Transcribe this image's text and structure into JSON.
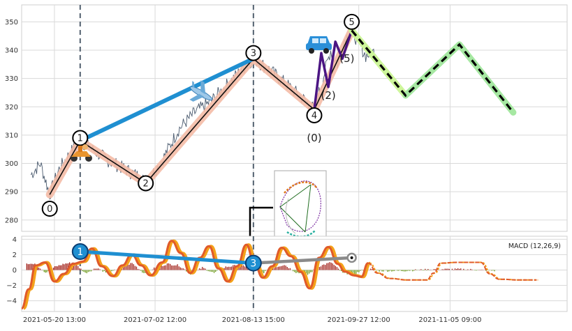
{
  "colors": {
    "grid": "#d9d9d9",
    "price_line": "#4a5a6e",
    "vline": "#52616f",
    "wave_fill": "#f4bba6",
    "wave_line": "#111111",
    "swing_line": "#1f8fd1",
    "sub_wave": "#4b1583",
    "projection_dash": "#000000",
    "projection_glow_a": "#cdf59a",
    "projection_glow_b": "#a6e8a2",
    "macd_line": "#e05a2a",
    "macd_signal": "#f4a21a",
    "hist_pos": "#a3241d",
    "hist_neg": "#6b9a1a",
    "connector_gray": "#8a8a8a"
  },
  "icons": [
    "scooter-icon",
    "airplane-icon",
    "car-icon",
    "chart-thumbnail-icon"
  ],
  "chart_data": [
    {
      "type": "line",
      "panel": "price",
      "ylim": [
        276,
        356
      ],
      "yticks": [
        "280",
        "290",
        "300",
        "310",
        "320",
        "330",
        "340",
        "350"
      ],
      "grid": true,
      "x_range": [
        "2021-05-06",
        "2021-12-25"
      ],
      "marker_vlines": [
        "2021-05-31",
        "2021-08-13"
      ],
      "price_series": [
        [
          "2021-05-10",
          296
        ],
        [
          "2021-05-14",
          300
        ],
        [
          "2021-05-18",
          289
        ],
        [
          "2021-05-22",
          298
        ],
        [
          "2021-05-27",
          304
        ],
        [
          "2021-05-31",
          308
        ],
        [
          "2021-06-05",
          305
        ],
        [
          "2021-06-12",
          301
        ],
        [
          "2021-06-19",
          298
        ],
        [
          "2021-06-26",
          295
        ],
        [
          "2021-06-28",
          293
        ],
        [
          "2021-07-05",
          301
        ],
        [
          "2021-07-12",
          312
        ],
        [
          "2021-07-19",
          318
        ],
        [
          "2021-07-26",
          322
        ],
        [
          "2021-08-02",
          328
        ],
        [
          "2021-08-09",
          334
        ],
        [
          "2021-08-13",
          337
        ],
        [
          "2021-08-20",
          333
        ],
        [
          "2021-08-27",
          328
        ],
        [
          "2021-09-03",
          323
        ],
        [
          "2021-09-08",
          319
        ],
        [
          "2021-09-12",
          331
        ],
        [
          "2021-09-15",
          340
        ],
        [
          "2021-09-18",
          335
        ],
        [
          "2021-09-21",
          344
        ],
        [
          "2021-09-24",
          347
        ],
        [
          "2021-09-30",
          338
        ],
        [
          "2021-10-05",
          340
        ]
      ],
      "wave_labels": [
        {
          "label": "0",
          "date": "2021-05-18",
          "value": 289,
          "badge_value": 284
        },
        {
          "label": "1",
          "date": "2021-05-31",
          "value": 308,
          "badge_value": 309
        },
        {
          "label": "2",
          "date": "2021-06-28",
          "value": 293,
          "badge_value": 293
        },
        {
          "label": "3",
          "date": "2021-08-13",
          "value": 337,
          "badge_value": 339
        },
        {
          "label": "4",
          "date": "2021-09-08",
          "value": 319,
          "badge_value": 317
        },
        {
          "label": "5",
          "date": "2021-09-24",
          "value": 347,
          "badge_value": 350
        }
      ],
      "sub_wave_path": [
        [
          "2021-09-08",
          319
        ],
        [
          "2021-09-11",
          339
        ],
        [
          "2021-09-14",
          327
        ],
        [
          "2021-09-17",
          343
        ],
        [
          "2021-09-20",
          337
        ],
        [
          "2021-09-24",
          347
        ]
      ],
      "sub_labels": [
        {
          "label": "(0)",
          "date": "2021-09-08",
          "value": 309
        },
        {
          "label": "(2)",
          "date": "2021-09-14",
          "value": 324
        },
        {
          "label": "(5)",
          "date": "2021-09-22",
          "value": 337
        }
      ],
      "swing_line": [
        [
          "2021-05-31",
          308
        ],
        [
          "2021-08-13",
          337
        ]
      ],
      "projection": [
        [
          "2021-09-24",
          347
        ],
        [
          "2021-10-17",
          324
        ],
        [
          "2021-11-09",
          342
        ],
        [
          "2021-12-02",
          318
        ]
      ]
    },
    {
      "type": "line",
      "panel": "macd",
      "legend": "MACD (12,26,9)",
      "ylim": [
        -5.4,
        4.4
      ],
      "yticks": [
        "−4",
        "−2",
        "0",
        "2",
        "4"
      ],
      "grid": true,
      "x_ticks": [
        "2021-05-20 13:00",
        "2021-07-02 12:00",
        "2021-08-13 15:00",
        "2021-09-27 12:00",
        "2021-11-05 09:00"
      ],
      "x_tick_dates": [
        "2021-05-20",
        "2021-07-02",
        "2021-08-13",
        "2021-09-27",
        "2021-11-05"
      ],
      "macd_series": [
        [
          "2021-05-06",
          -5.0
        ],
        [
          "2021-05-09",
          -2.5
        ],
        [
          "2021-05-12",
          0.6
        ],
        [
          "2021-05-16",
          1.0
        ],
        [
          "2021-05-20",
          -1.5
        ],
        [
          "2021-05-24",
          -0.5
        ],
        [
          "2021-05-28",
          0.8
        ],
        [
          "2021-06-01",
          1.1
        ],
        [
          "2021-06-05",
          2.8
        ],
        [
          "2021-06-09",
          0.5
        ],
        [
          "2021-06-14",
          -0.8
        ],
        [
          "2021-06-18",
          0.6
        ],
        [
          "2021-06-22",
          2.0
        ],
        [
          "2021-06-26",
          0.6
        ],
        [
          "2021-06-30",
          -0.7
        ],
        [
          "2021-07-05",
          1.0
        ],
        [
          "2021-07-09",
          3.8
        ],
        [
          "2021-07-13",
          2.2
        ],
        [
          "2021-07-17",
          -0.4
        ],
        [
          "2021-07-21",
          1.6
        ],
        [
          "2021-07-25",
          3.1
        ],
        [
          "2021-07-29",
          0.2
        ],
        [
          "2021-08-02",
          -1.5
        ],
        [
          "2021-08-06",
          0.5
        ],
        [
          "2021-08-10",
          3.3
        ],
        [
          "2021-08-13",
          1.3
        ],
        [
          "2021-08-17",
          -1.0
        ],
        [
          "2021-08-21",
          0.5
        ],
        [
          "2021-08-25",
          2.9
        ],
        [
          "2021-08-29",
          1.8
        ],
        [
          "2021-09-02",
          -0.2
        ],
        [
          "2021-09-06",
          -2.4
        ],
        [
          "2021-09-10",
          1.6
        ],
        [
          "2021-09-14",
          3.0
        ],
        [
          "2021-09-18",
          0.8
        ],
        [
          "2021-09-21",
          -0.2
        ],
        [
          "2021-09-25",
          -0.7
        ],
        [
          "2021-09-28",
          -0.9
        ],
        [
          "2021-10-01",
          0.9
        ],
        [
          "2021-10-05",
          -0.4
        ],
        [
          "2021-10-10",
          -1.1
        ],
        [
          "2021-10-18",
          -1.3
        ],
        [
          "2021-10-26",
          -1.3
        ],
        [
          "2021-10-29",
          -0.4
        ],
        [
          "2021-11-01",
          0.9
        ],
        [
          "2021-11-08",
          1.0
        ],
        [
          "2021-11-18",
          1.0
        ],
        [
          "2021-11-22",
          -0.5
        ],
        [
          "2021-11-26",
          -1.2
        ],
        [
          "2021-12-05",
          -1.3
        ],
        [
          "2021-12-12",
          -1.3
        ]
      ],
      "hist_series": [
        [
          "2021-05-08",
          0.9
        ],
        [
          "2021-05-12",
          0.7
        ],
        [
          "2021-05-16",
          -0.3
        ],
        [
          "2021-05-20",
          0.4
        ],
        [
          "2021-05-24",
          0.8
        ],
        [
          "2021-05-28",
          1.0
        ],
        [
          "2021-06-02",
          -0.4
        ],
        [
          "2021-06-07",
          0.3
        ],
        [
          "2021-06-12",
          -0.5
        ],
        [
          "2021-06-17",
          0.4
        ],
        [
          "2021-06-22",
          0.9
        ],
        [
          "2021-06-27",
          -0.4
        ],
        [
          "2021-07-02",
          0.3
        ],
        [
          "2021-07-07",
          0.8
        ],
        [
          "2021-07-12",
          0.6
        ],
        [
          "2021-07-17",
          -0.5
        ],
        [
          "2021-07-22",
          0.3
        ],
        [
          "2021-07-27",
          -0.4
        ],
        [
          "2021-08-01",
          0.4
        ],
        [
          "2021-08-06",
          0.6
        ],
        [
          "2021-08-11",
          0.5
        ],
        [
          "2021-08-16",
          -0.5
        ],
        [
          "2021-08-21",
          0.3
        ],
        [
          "2021-08-26",
          0.7
        ],
        [
          "2021-08-31",
          -0.3
        ],
        [
          "2021-09-05",
          -0.6
        ],
        [
          "2021-09-10",
          0.5
        ],
        [
          "2021-09-15",
          1.0
        ],
        [
          "2021-09-20",
          -0.4
        ],
        [
          "2021-09-25",
          -0.5
        ],
        [
          "2021-09-30",
          0.2
        ],
        [
          "2021-10-05",
          -0.1
        ],
        [
          "2021-10-15",
          -0.1
        ],
        [
          "2021-10-30",
          0.1
        ],
        [
          "2021-11-10",
          0.1
        ],
        [
          "2021-11-25",
          -0.1
        ]
      ],
      "swing_line": [
        [
          "2021-05-31",
          2.4
        ],
        [
          "2021-08-13",
          0.9
        ]
      ],
      "gray_connector": [
        [
          "2021-08-13",
          0.9
        ],
        [
          "2021-09-24",
          1.6
        ]
      ],
      "badges": [
        {
          "label": "1",
          "date": "2021-05-31",
          "value": 2.4
        },
        {
          "label": "3",
          "date": "2021-08-13",
          "value": 0.9
        }
      ]
    }
  ]
}
